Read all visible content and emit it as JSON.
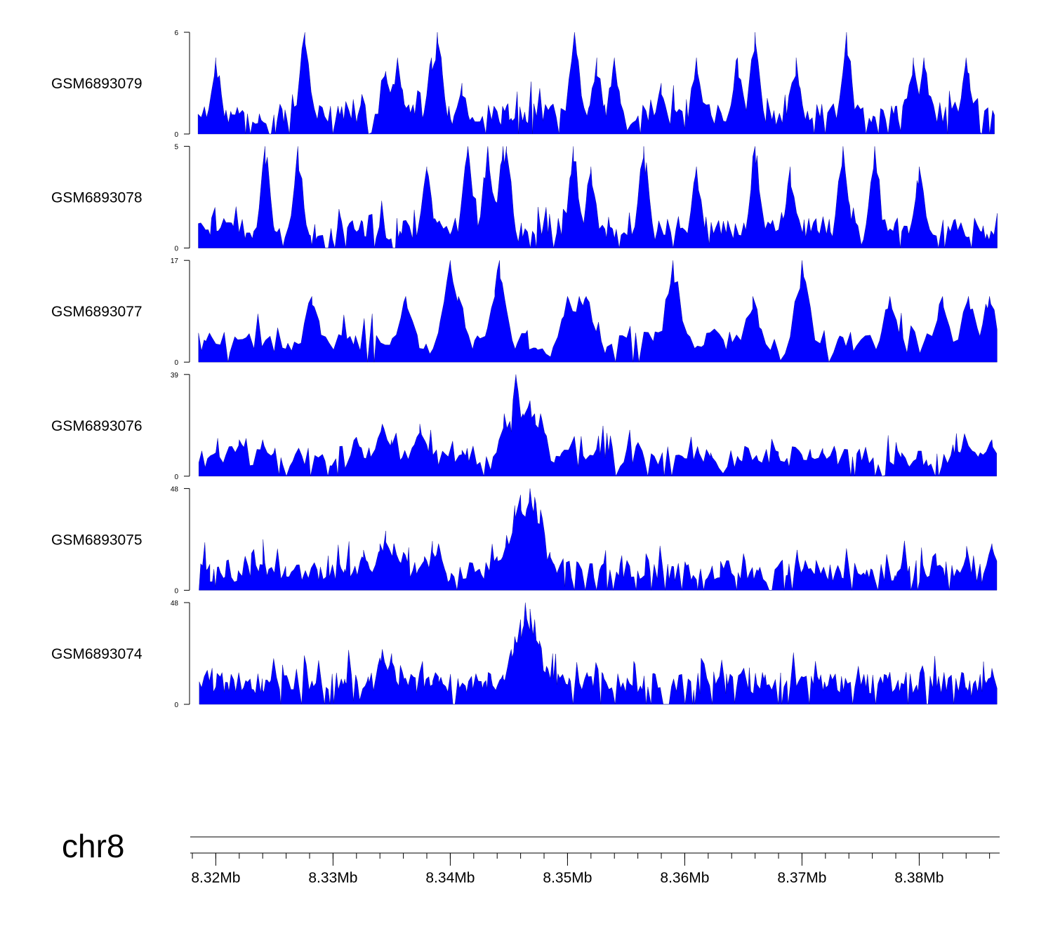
{
  "chart_data": {
    "type": "area",
    "chromosome": "chr8",
    "x_unit": "bp",
    "xlim": [
      8318000,
      8386800
    ],
    "x_ticks": [
      8320000,
      8330000,
      8340000,
      8350000,
      8360000,
      8370000,
      8380000
    ],
    "x_tick_labels": [
      "8.32Mb",
      "8.33Mb",
      "8.34Mb",
      "8.35Mb",
      "8.36Mb",
      "8.37Mb",
      "8.38Mb"
    ],
    "minor_tick_step": 2000,
    "fill_color": "#0000ff",
    "series": [
      {
        "name": "GSM6893079",
        "ymax": 6,
        "y_tick_labels": [
          "0",
          "6"
        ],
        "baseline": 0,
        "step": 200,
        "peaks": [
          {
            "x": 8320000,
            "y": 4.5
          },
          {
            "x": 8327600,
            "y": 6
          },
          {
            "x": 8334500,
            "y": 3.7
          },
          {
            "x": 8335500,
            "y": 4.5
          },
          {
            "x": 8338400,
            "y": 4.5
          },
          {
            "x": 8338900,
            "y": 6
          },
          {
            "x": 8341000,
            "y": 3.0
          },
          {
            "x": 8350600,
            "y": 6
          },
          {
            "x": 8352500,
            "y": 4.5
          },
          {
            "x": 8354000,
            "y": 4.5
          },
          {
            "x": 8358000,
            "y": 3.0
          },
          {
            "x": 8361000,
            "y": 4.5
          },
          {
            "x": 8364500,
            "y": 4.5
          },
          {
            "x": 8366000,
            "y": 6
          },
          {
            "x": 8369500,
            "y": 4.5
          },
          {
            "x": 8373800,
            "y": 6
          },
          {
            "x": 8379500,
            "y": 4.5
          },
          {
            "x": 8380400,
            "y": 4.5
          },
          {
            "x": 8384000,
            "y": 4.5
          }
        ]
      },
      {
        "name": "GSM6893078",
        "ymax": 5,
        "y_tick_labels": [
          "0",
          "5"
        ],
        "baseline": 0,
        "step": 200,
        "peaks": [
          {
            "x": 8324200,
            "y": 5
          },
          {
            "x": 8327000,
            "y": 5
          },
          {
            "x": 8338000,
            "y": 4
          },
          {
            "x": 8341500,
            "y": 5
          },
          {
            "x": 8343200,
            "y": 5
          },
          {
            "x": 8344500,
            "y": 5
          },
          {
            "x": 8344800,
            "y": 5
          },
          {
            "x": 8350500,
            "y": 5
          },
          {
            "x": 8352000,
            "y": 4
          },
          {
            "x": 8356500,
            "y": 5
          },
          {
            "x": 8361000,
            "y": 4
          },
          {
            "x": 8366000,
            "y": 5
          },
          {
            "x": 8369000,
            "y": 4
          },
          {
            "x": 8373500,
            "y": 5
          },
          {
            "x": 8376200,
            "y": 5
          },
          {
            "x": 8380000,
            "y": 4
          }
        ]
      },
      {
        "name": "GSM6893077",
        "ymax": 17,
        "y_tick_labels": [
          "0",
          "17"
        ],
        "baseline": 0,
        "step": 300,
        "peaks": [
          {
            "x": 8328200,
            "y": 11
          },
          {
            "x": 8336200,
            "y": 11
          },
          {
            "x": 8340000,
            "y": 17
          },
          {
            "x": 8340700,
            "y": 11
          },
          {
            "x": 8343800,
            "y": 11
          },
          {
            "x": 8344200,
            "y": 17
          },
          {
            "x": 8350000,
            "y": 11
          },
          {
            "x": 8351000,
            "y": 11
          },
          {
            "x": 8351600,
            "y": 11
          },
          {
            "x": 8359000,
            "y": 17
          },
          {
            "x": 8365800,
            "y": 11
          },
          {
            "x": 8370000,
            "y": 17
          },
          {
            "x": 8377500,
            "y": 11
          },
          {
            "x": 8382000,
            "y": 11
          },
          {
            "x": 8384200,
            "y": 11
          },
          {
            "x": 8386000,
            "y": 11
          }
        ]
      },
      {
        "name": "GSM6893076",
        "ymax": 39,
        "y_tick_labels": [
          "0",
          "39"
        ],
        "baseline": 0,
        "step": 250,
        "peaks": [
          {
            "x": 8320000,
            "y": 9
          },
          {
            "x": 8322000,
            "y": 14
          },
          {
            "x": 8324000,
            "y": 14
          },
          {
            "x": 8332000,
            "y": 15
          },
          {
            "x": 8334200,
            "y": 20
          },
          {
            "x": 8335000,
            "y": 14
          },
          {
            "x": 8337400,
            "y": 20
          },
          {
            "x": 8338000,
            "y": 12
          },
          {
            "x": 8341000,
            "y": 10
          },
          {
            "x": 8344600,
            "y": 24
          },
          {
            "x": 8345200,
            "y": 17
          },
          {
            "x": 8345600,
            "y": 39
          },
          {
            "x": 8346200,
            "y": 24
          },
          {
            "x": 8346800,
            "y": 29
          },
          {
            "x": 8347200,
            "y": 24
          },
          {
            "x": 8347700,
            "y": 24
          },
          {
            "x": 8352200,
            "y": 8
          },
          {
            "x": 8362200,
            "y": 9
          },
          {
            "x": 8368000,
            "y": 8
          },
          {
            "x": 8371800,
            "y": 9
          },
          {
            "x": 8378500,
            "y": 9
          },
          {
            "x": 8383500,
            "y": 9
          },
          {
            "x": 8386200,
            "y": 14
          }
        ]
      },
      {
        "name": "GSM6893075",
        "ymax": 48,
        "y_tick_labels": [
          "0",
          "48"
        ],
        "baseline": 0,
        "step": 200,
        "peaks": [
          {
            "x": 8319500,
            "y": 4
          },
          {
            "x": 8324000,
            "y": 12
          },
          {
            "x": 8326000,
            "y": 7
          },
          {
            "x": 8331000,
            "y": 10
          },
          {
            "x": 8332600,
            "y": 19
          },
          {
            "x": 8334000,
            "y": 22
          },
          {
            "x": 8334500,
            "y": 28
          },
          {
            "x": 8335200,
            "y": 22
          },
          {
            "x": 8336000,
            "y": 18
          },
          {
            "x": 8337800,
            "y": 16
          },
          {
            "x": 8338500,
            "y": 18
          },
          {
            "x": 8339000,
            "y": 22
          },
          {
            "x": 8342500,
            "y": 10
          },
          {
            "x": 8344000,
            "y": 16
          },
          {
            "x": 8344800,
            "y": 26
          },
          {
            "x": 8345500,
            "y": 40
          },
          {
            "x": 8346000,
            "y": 45
          },
          {
            "x": 8346500,
            "y": 38
          },
          {
            "x": 8346800,
            "y": 48
          },
          {
            "x": 8347200,
            "y": 44
          },
          {
            "x": 8347700,
            "y": 38
          },
          {
            "x": 8348500,
            "y": 18
          },
          {
            "x": 8349000,
            "y": 10
          },
          {
            "x": 8363000,
            "y": 6
          },
          {
            "x": 8378000,
            "y": 6
          },
          {
            "x": 8384000,
            "y": 16
          },
          {
            "x": 8386200,
            "y": 22
          }
        ]
      },
      {
        "name": "GSM6893074",
        "ymax": 48,
        "y_tick_labels": [
          "0",
          "48"
        ],
        "baseline": 1,
        "step": 180,
        "peaks": [
          {
            "x": 8320000,
            "y": 8
          },
          {
            "x": 8324000,
            "y": 7
          },
          {
            "x": 8331000,
            "y": 12
          },
          {
            "x": 8333000,
            "y": 13
          },
          {
            "x": 8334000,
            "y": 22
          },
          {
            "x": 8334200,
            "y": 26
          },
          {
            "x": 8334600,
            "y": 17
          },
          {
            "x": 8335000,
            "y": 24
          },
          {
            "x": 8336500,
            "y": 11
          },
          {
            "x": 8338500,
            "y": 11
          },
          {
            "x": 8339000,
            "y": 13
          },
          {
            "x": 8343500,
            "y": 12
          },
          {
            "x": 8344500,
            "y": 14
          },
          {
            "x": 8345200,
            "y": 26
          },
          {
            "x": 8345500,
            "y": 32
          },
          {
            "x": 8346000,
            "y": 40
          },
          {
            "x": 8346400,
            "y": 48
          },
          {
            "x": 8346800,
            "y": 45
          },
          {
            "x": 8347200,
            "y": 40
          },
          {
            "x": 8347600,
            "y": 30
          },
          {
            "x": 8348200,
            "y": 18
          },
          {
            "x": 8348800,
            "y": 12
          },
          {
            "x": 8363500,
            "y": 5
          },
          {
            "x": 8384000,
            "y": 8
          },
          {
            "x": 8386200,
            "y": 17
          }
        ]
      }
    ]
  }
}
